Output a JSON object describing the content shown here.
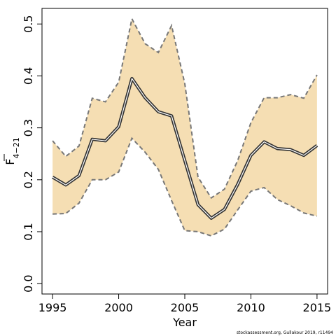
{
  "chart_data": {
    "type": "area",
    "xlabel": "Year",
    "ylabel_main": "F",
    "ylabel_sub": "4−21",
    "credit": "stockassessment.org, Gullakour 2019, r11494",
    "xlim": [
      1994.2,
      2015.8
    ],
    "ylim": [
      -0.02,
      0.53
    ],
    "x_ticks": [
      1995,
      2000,
      2005,
      2010,
      2015
    ],
    "y_ticks": [
      0.0,
      0.1,
      0.2,
      0.3,
      0.4,
      0.5
    ],
    "y_tick_labels": [
      "0.0",
      "0.1",
      "0.2",
      "0.3",
      "0.4",
      "0.5"
    ],
    "band_color": "#f5deb3",
    "bound_color": "#777777",
    "line_color": "#333333",
    "x": [
      1995,
      1996,
      1997,
      1998,
      1999,
      2000,
      2001,
      2002,
      2003,
      2004,
      2005,
      2006,
      2007,
      2008,
      2009,
      2010,
      2011,
      2012,
      2013,
      2014,
      2015
    ],
    "series": [
      {
        "name": "estimate",
        "values": [
          0.205,
          0.19,
          0.208,
          0.278,
          0.275,
          0.302,
          0.395,
          0.358,
          0.331,
          0.323,
          0.237,
          0.152,
          0.126,
          0.143,
          0.191,
          0.247,
          0.273,
          0.26,
          0.258,
          0.247,
          0.266
        ]
      },
      {
        "name": "upper",
        "values": [
          0.275,
          0.245,
          0.265,
          0.357,
          0.35,
          0.388,
          0.51,
          0.462,
          0.445,
          0.497,
          0.385,
          0.205,
          0.165,
          0.182,
          0.237,
          0.31,
          0.358,
          0.358,
          0.364,
          0.357,
          0.402
        ]
      },
      {
        "name": "lower",
        "values": [
          0.134,
          0.135,
          0.155,
          0.2,
          0.2,
          0.215,
          0.28,
          0.253,
          0.22,
          0.16,
          0.102,
          0.1,
          0.092,
          0.105,
          0.142,
          0.178,
          0.185,
          0.162,
          0.15,
          0.136,
          0.13
        ]
      }
    ]
  }
}
